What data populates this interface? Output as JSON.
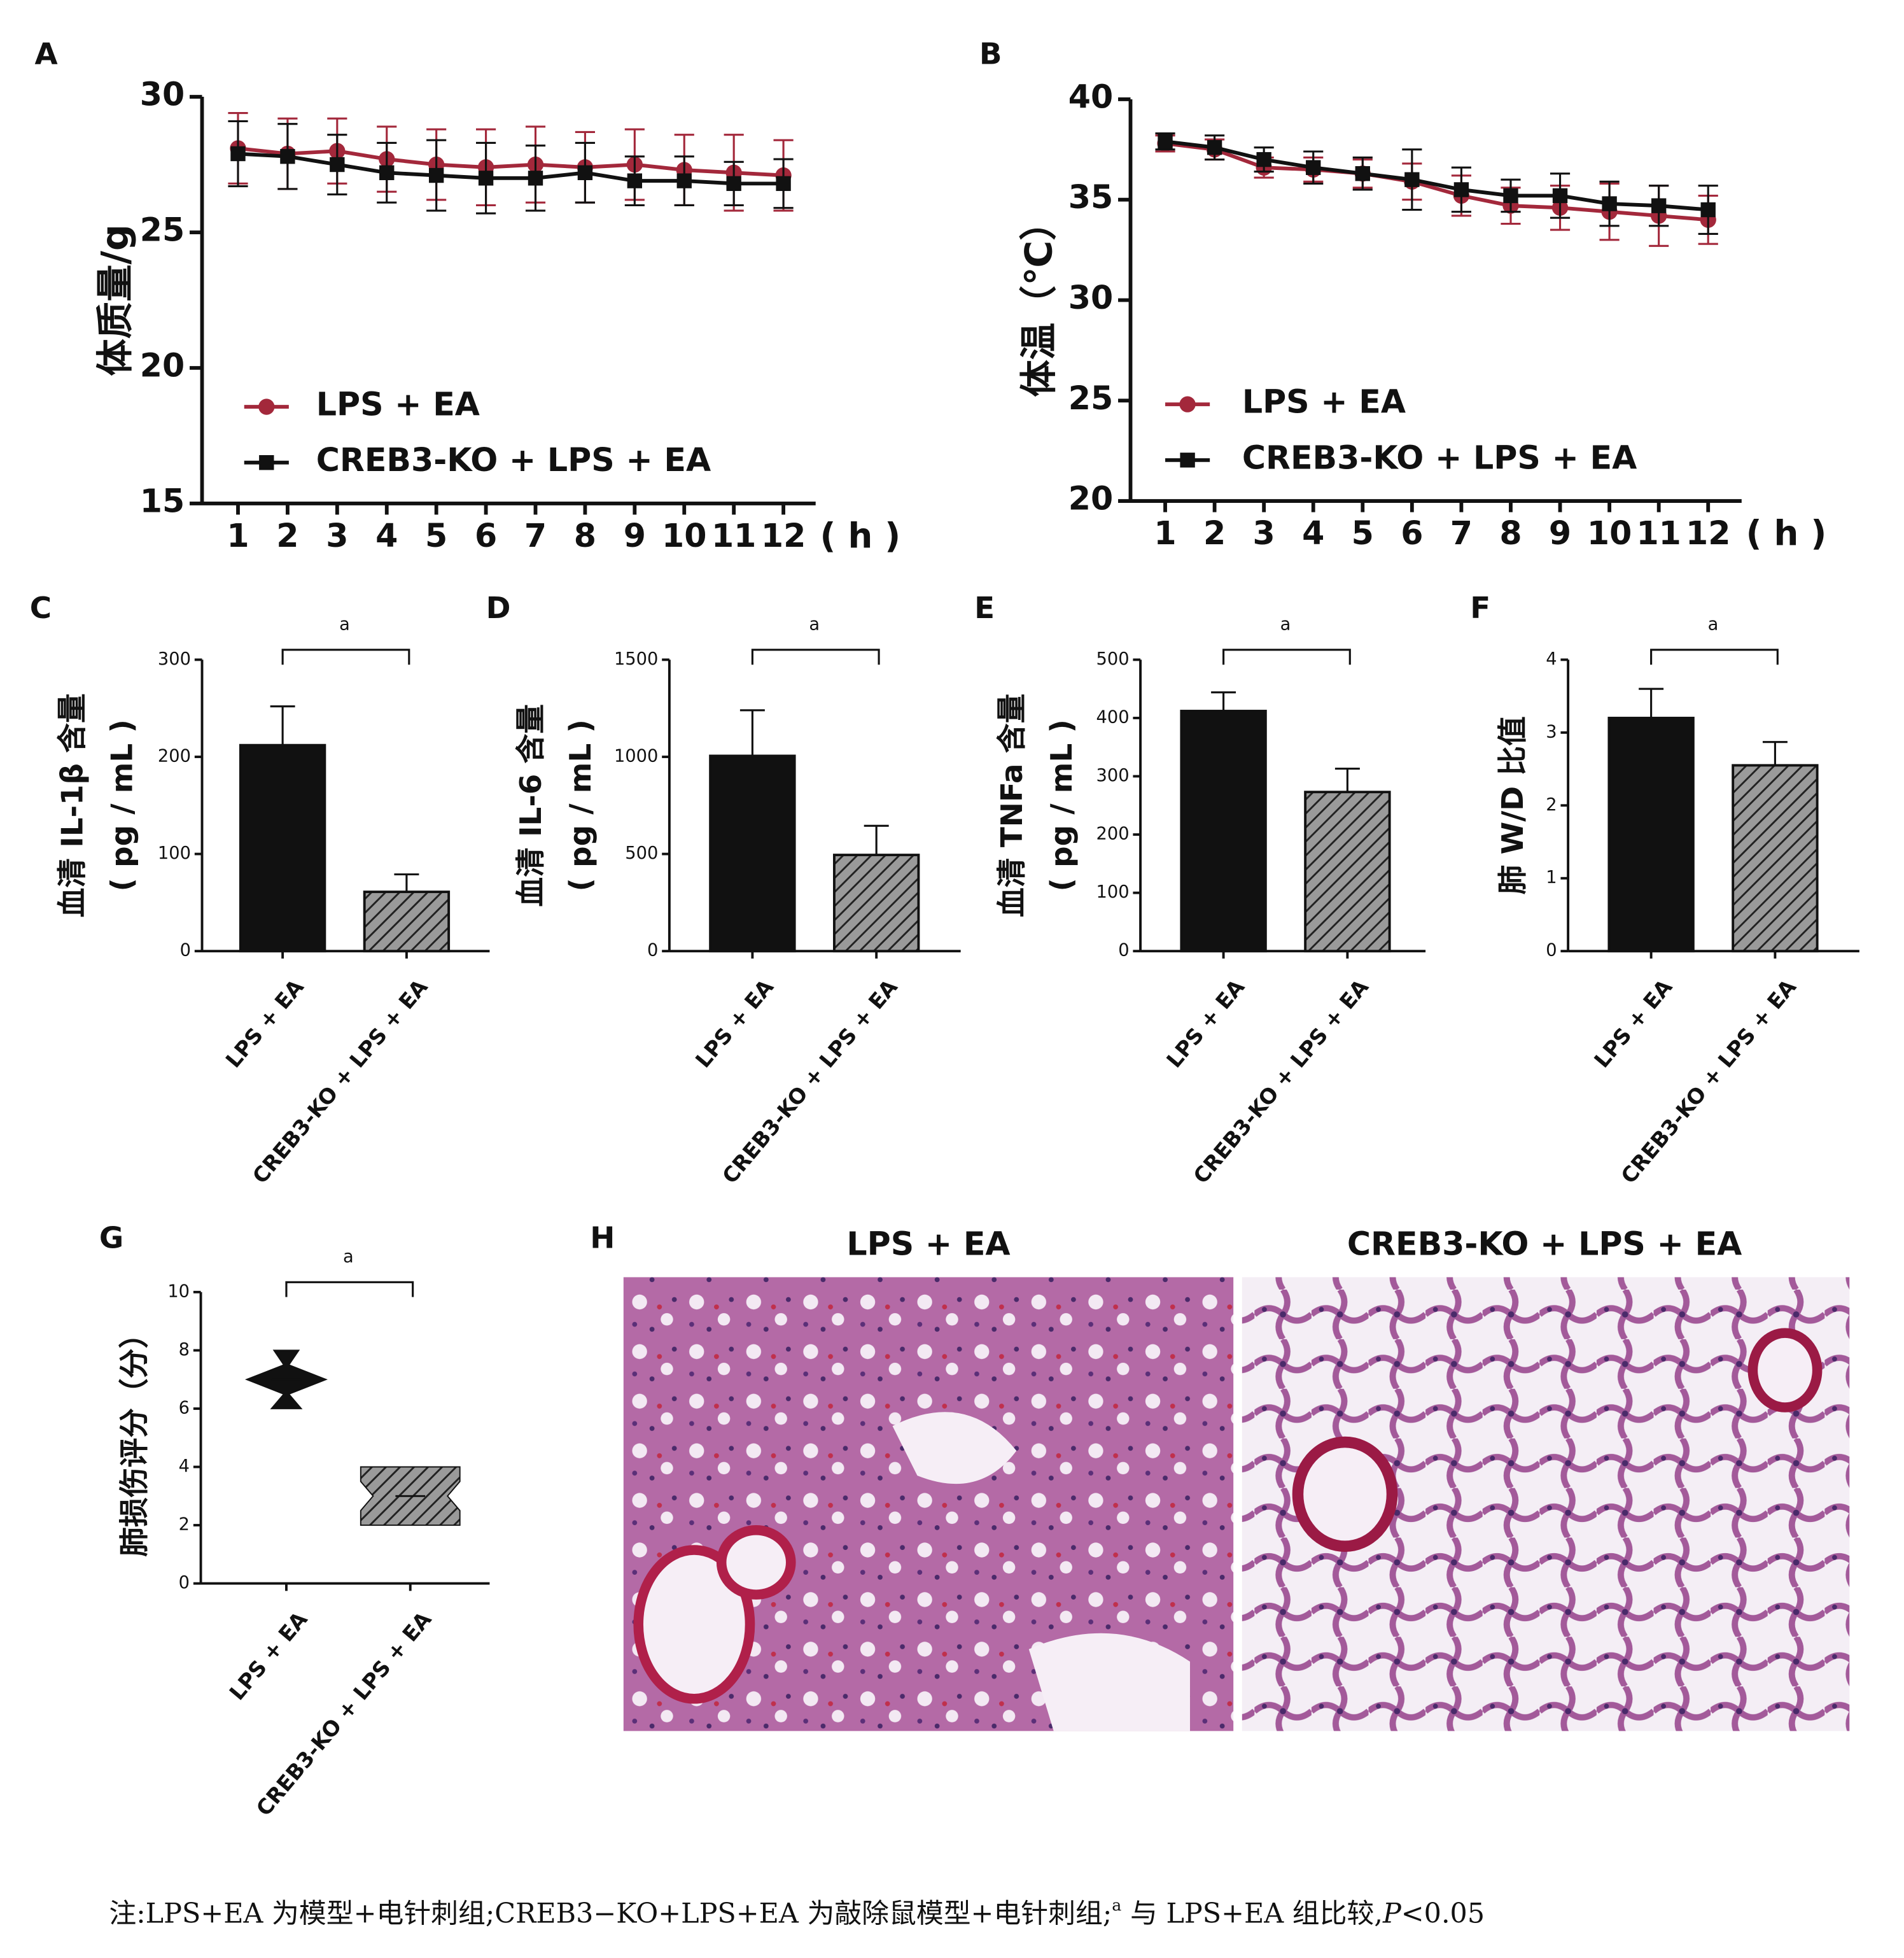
{
  "chart_data": [
    {
      "panel": "A",
      "type": "line",
      "ylabel": [
        "体质量/g"
      ],
      "xlabel": "( h )",
      "categories": [
        "1",
        "2",
        "3",
        "4",
        "5",
        "6",
        "7",
        "8",
        "9",
        "10",
        "11",
        "12"
      ],
      "ylim": [
        15,
        30
      ],
      "yticks": [
        15,
        20,
        25,
        30
      ],
      "legend": "lower left",
      "series": [
        {
          "name": "LPS + EA",
          "color": "#a3283b",
          "marker": "circle",
          "values": [
            28.1,
            27.9,
            28.0,
            27.7,
            27.5,
            27.4,
            27.5,
            27.4,
            27.5,
            27.3,
            27.2,
            27.1
          ],
          "errors": [
            1.3,
            1.3,
            1.2,
            1.2,
            1.3,
            1.4,
            1.4,
            1.3,
            1.3,
            1.3,
            1.4,
            1.3
          ]
        },
        {
          "name": "CREB3-KO + LPS + EA",
          "color": "#111111",
          "marker": "square",
          "values": [
            27.9,
            27.8,
            27.5,
            27.2,
            27.1,
            27.0,
            27.0,
            27.2,
            26.9,
            26.9,
            26.8,
            26.8
          ],
          "errors": [
            1.2,
            1.2,
            1.1,
            1.1,
            1.3,
            1.3,
            1.2,
            1.1,
            0.9,
            0.9,
            0.8,
            0.9
          ]
        }
      ]
    },
    {
      "panel": "B",
      "type": "line",
      "ylabel": [
        "体温（℃）"
      ],
      "xlabel": "( h )",
      "categories": [
        "1",
        "2",
        "3",
        "4",
        "5",
        "6",
        "7",
        "8",
        "9",
        "10",
        "11",
        "12"
      ],
      "ylim": [
        20,
        40
      ],
      "yticks": [
        20,
        25,
        30,
        35,
        40
      ],
      "legend": "lower left",
      "series": [
        {
          "name": "LPS + EA",
          "color": "#a3283b",
          "marker": "circle",
          "values": [
            37.8,
            37.5,
            36.6,
            36.5,
            36.3,
            35.9,
            35.2,
            34.7,
            34.6,
            34.4,
            34.2,
            34.0
          ],
          "errors": [
            0.4,
            0.5,
            0.5,
            0.6,
            0.7,
            0.9,
            1.0,
            0.9,
            1.1,
            1.4,
            1.5,
            1.2
          ]
        },
        {
          "name": "CREB3-KO + LPS + EA",
          "color": "#111111",
          "marker": "square",
          "values": [
            37.9,
            37.6,
            37.0,
            36.6,
            36.3,
            36.0,
            35.5,
            35.2,
            35.2,
            34.8,
            34.7,
            34.5
          ],
          "errors": [
            0.4,
            0.6,
            0.6,
            0.8,
            0.8,
            1.5,
            1.1,
            0.8,
            1.1,
            1.1,
            1.0,
            1.2
          ]
        }
      ]
    },
    {
      "panel": "C",
      "type": "bar",
      "ylabel": [
        "血清 IL-1β 含量",
        "( pg / mL )"
      ],
      "categories": [
        "LPS + EA",
        "CREB3-KO + LPS + EA"
      ],
      "values": [
        212,
        61
      ],
      "errors": [
        40,
        18
      ],
      "colors": [
        "#111111",
        "#9a9a9a"
      ],
      "hatch": [
        false,
        true
      ],
      "ylim": [
        0,
        300
      ],
      "yticks": [
        0,
        100,
        200,
        300
      ],
      "annotation": "a"
    },
    {
      "panel": "D",
      "type": "bar",
      "ylabel": [
        "血清 IL-6 含量",
        "( pg / mL )"
      ],
      "categories": [
        "LPS + EA",
        "CREB3-KO + LPS + EA"
      ],
      "values": [
        1005,
        495
      ],
      "errors": [
        235,
        150
      ],
      "colors": [
        "#111111",
        "#9a9a9a"
      ],
      "hatch": [
        false,
        true
      ],
      "ylim": [
        0,
        1500
      ],
      "yticks": [
        0,
        500,
        1000,
        1500
      ],
      "annotation": "a"
    },
    {
      "panel": "E",
      "type": "bar",
      "ylabel": [
        "血清 TNFa 含量",
        "( pg / mL )"
      ],
      "categories": [
        "LPS + EA",
        "CREB3-KO + LPS + EA"
      ],
      "values": [
        412,
        273
      ],
      "errors": [
        32,
        40
      ],
      "colors": [
        "#111111",
        "#9a9a9a"
      ],
      "hatch": [
        false,
        true
      ],
      "ylim": [
        0,
        500
      ],
      "yticks": [
        0,
        100,
        200,
        300,
        400,
        500
      ],
      "annotation": "a"
    },
    {
      "panel": "F",
      "type": "bar",
      "ylabel": [
        "肺 W/D 比值"
      ],
      "categories": [
        "LPS + EA",
        "CREB3-KO + LPS + EA"
      ],
      "values": [
        3.2,
        2.55
      ],
      "errors": [
        0.4,
        0.32
      ],
      "colors": [
        "#111111",
        "#9a9a9a"
      ],
      "hatch": [
        false,
        true
      ],
      "ylim": [
        0,
        4
      ],
      "yticks": [
        0,
        1,
        2,
        3,
        4
      ],
      "annotation": "a"
    },
    {
      "panel": "G",
      "type": "violin",
      "ylabel": [
        "肺损伤评分（分）"
      ],
      "categories": [
        "LPS + EA",
        "CREB3-KO + LPS + EA"
      ],
      "mins": [
        6,
        2
      ],
      "medians": [
        7,
        3
      ],
      "maxs": [
        8,
        4
      ],
      "colors": [
        "#111111",
        "#9a9a9a"
      ],
      "hatch": [
        false,
        true
      ],
      "ylim": [
        0,
        10
      ],
      "yticks": [
        0,
        2,
        4,
        6,
        8,
        10
      ],
      "annotation": "a"
    }
  ],
  "panel_h": {
    "panel": "H",
    "titles": [
      "LPS + EA",
      "CREB3-KO + LPS + EA"
    ]
  },
  "note": [
    "注:LPS+EA 为模型+电针刺组;CREB3−KO+LPS+EA 为敲除鼠模型+电针刺组;",
    "a",
    " 与 LPS+EA 组比较,",
    "P",
    "<0.05"
  ]
}
